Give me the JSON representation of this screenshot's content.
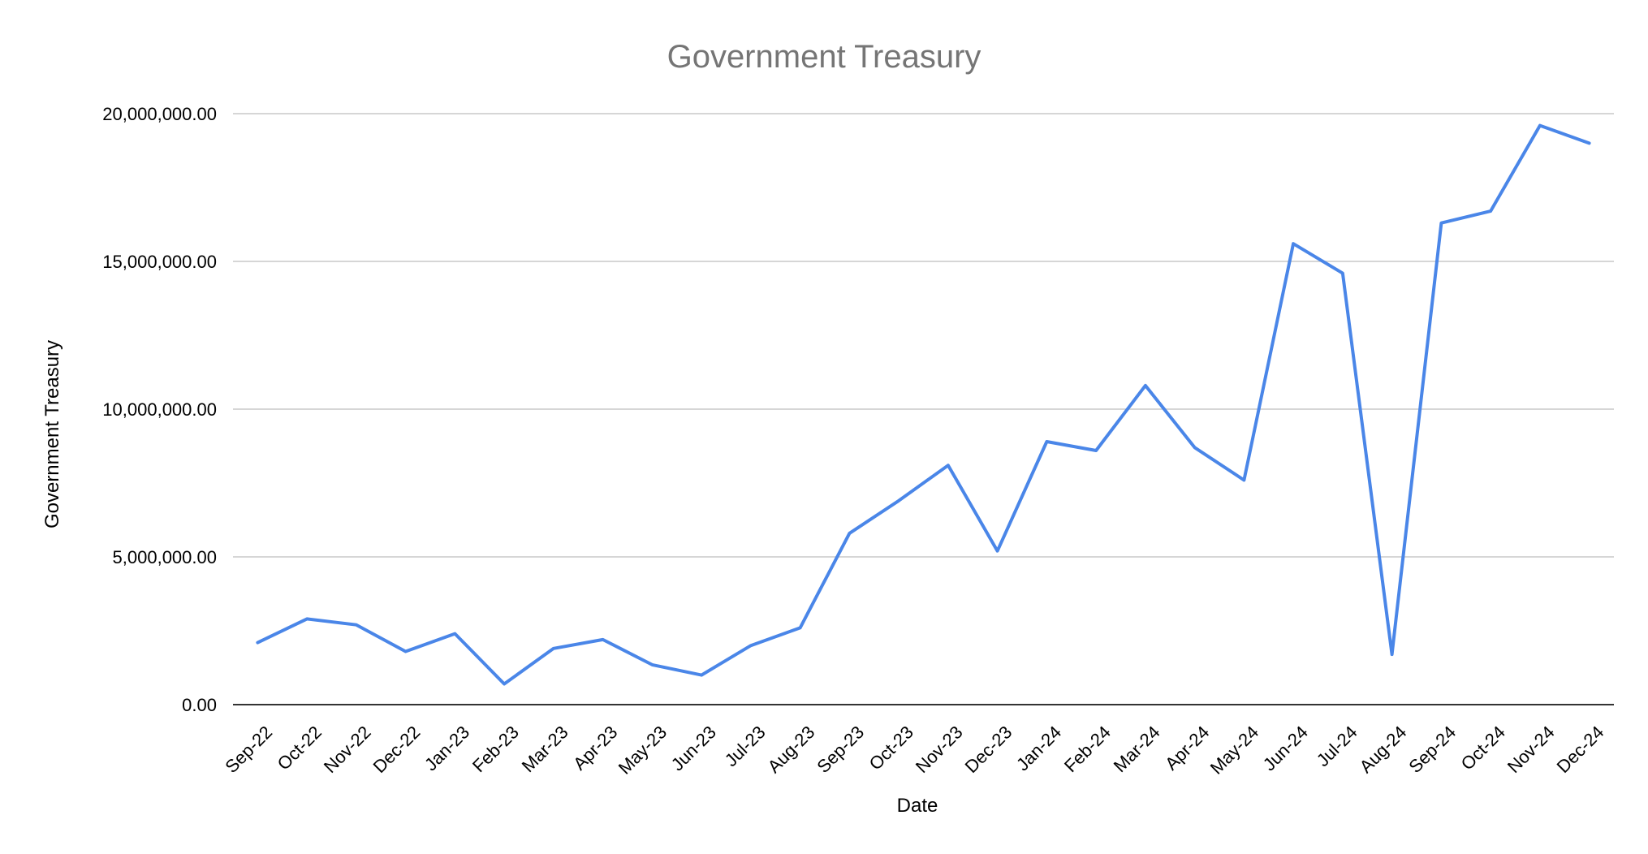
{
  "chart_data": {
    "type": "line",
    "title": "Government Treasury",
    "xlabel": "Date",
    "ylabel": "Government Treasury",
    "categories": [
      "Sep-22",
      "Oct-22",
      "Nov-22",
      "Dec-22",
      "Jan-23",
      "Feb-23",
      "Mar-23",
      "Apr-23",
      "May-23",
      "Jun-23",
      "Jul-23",
      "Aug-23",
      "Sep-23",
      "Oct-23",
      "Nov-23",
      "Dec-23",
      "Jan-24",
      "Feb-24",
      "Mar-24",
      "Apr-24",
      "May-24",
      "Jun-24",
      "Jul-24",
      "Aug-24",
      "Sep-24",
      "Oct-24",
      "Nov-24",
      "Dec-24"
    ],
    "series": [
      {
        "values": [
          2100000,
          2900000,
          2700000,
          1800000,
          2400000,
          700000,
          1900000,
          2200000,
          1350000,
          1000000,
          2000000,
          2600000,
          5800000,
          6900000,
          8100000,
          5200000,
          8900000,
          8600000,
          10800000,
          8700000,
          7600000,
          15600000,
          14600000,
          1700000,
          16300000,
          16700000,
          19600000,
          19000000
        ],
        "color": "#4a86e8"
      }
    ],
    "ylim": [
      0,
      20000000
    ],
    "yticks": [
      0,
      5000000,
      10000000,
      15000000,
      20000000
    ],
    "ytick_labels": [
      "0.00",
      "5,000,000.00",
      "10,000,000.00",
      "15,000,000.00",
      "20,000,000.00"
    ],
    "grid": true,
    "legend": "none"
  }
}
